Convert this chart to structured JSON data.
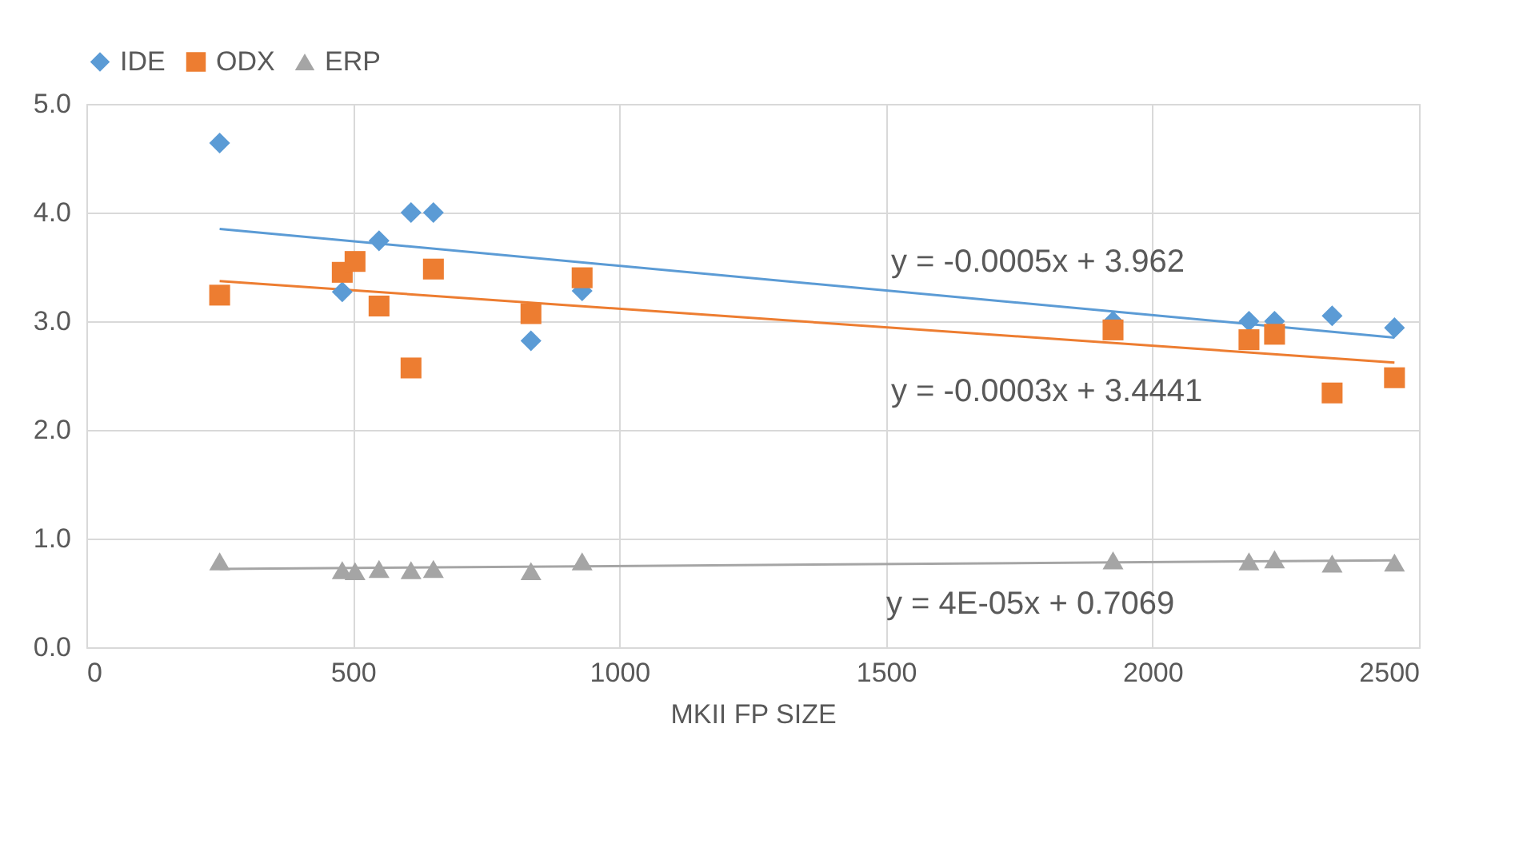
{
  "chart_data": {
    "type": "scatter",
    "xlabel": "MKII FP SIZE",
    "xlim": [
      0,
      2500
    ],
    "xticks": [
      0,
      500,
      1000,
      1500,
      2000,
      2500
    ],
    "ylim": [
      0,
      5
    ],
    "yticks": [
      {
        "value": 0,
        "label": "0.0"
      },
      {
        "value": 1,
        "label": "1.0"
      },
      {
        "value": 2,
        "label": "2.0"
      },
      {
        "value": 3,
        "label": "3.0"
      },
      {
        "value": 4,
        "label": "4.0"
      },
      {
        "value": 5,
        "label": "5.0"
      }
    ],
    "grid": true,
    "legend": "top",
    "series": [
      {
        "name": "IDE",
        "color": "#5b9bd5",
        "marker": "diamond",
        "x": [
          250,
          480,
          549,
          609,
          651,
          834,
          930,
          1926,
          2181,
          2229,
          2337,
          2454
        ],
        "values": [
          4.64,
          3.27,
          3.74,
          4.0,
          4.0,
          2.82,
          3.28,
          3.0,
          3.0,
          3.0,
          3.05,
          2.94
        ]
      },
      {
        "name": "ODX",
        "color": "#ed7d31",
        "marker": "square",
        "x": [
          250,
          480,
          504,
          549,
          609,
          651,
          834,
          930,
          1926,
          2181,
          2229,
          2337,
          2454
        ],
        "values": [
          3.24,
          3.45,
          3.55,
          3.14,
          2.57,
          3.48,
          3.07,
          3.4,
          2.92,
          2.83,
          2.88,
          2.34,
          2.48
        ]
      },
      {
        "name": "ERP",
        "color": "#a5a5a5",
        "marker": "triangle",
        "x": [
          250,
          480,
          504,
          549,
          609,
          651,
          834,
          930,
          1926,
          2181,
          2229,
          2337,
          2454
        ],
        "values": [
          0.79,
          0.71,
          0.7,
          0.72,
          0.71,
          0.72,
          0.7,
          0.79,
          0.8,
          0.79,
          0.81,
          0.77,
          0.78
        ]
      },
      {
        "type": "line",
        "color": "#5b9bd5",
        "x": [
          250,
          2454
        ],
        "values": [
          3.85,
          2.85
        ]
      },
      {
        "type": "line",
        "color": "#ed7d31",
        "x": [
          250,
          2454
        ],
        "values": [
          3.37,
          2.62
        ]
      },
      {
        "type": "line",
        "color": "#a5a5a5",
        "x": [
          250,
          2454
        ],
        "values": [
          0.72,
          0.8
        ]
      }
    ],
    "annotations": [
      "y = -0.0005x + 3.962",
      "y = -0.0003x + 3.4441",
      "y = 4E-05x + 0.7069"
    ]
  }
}
